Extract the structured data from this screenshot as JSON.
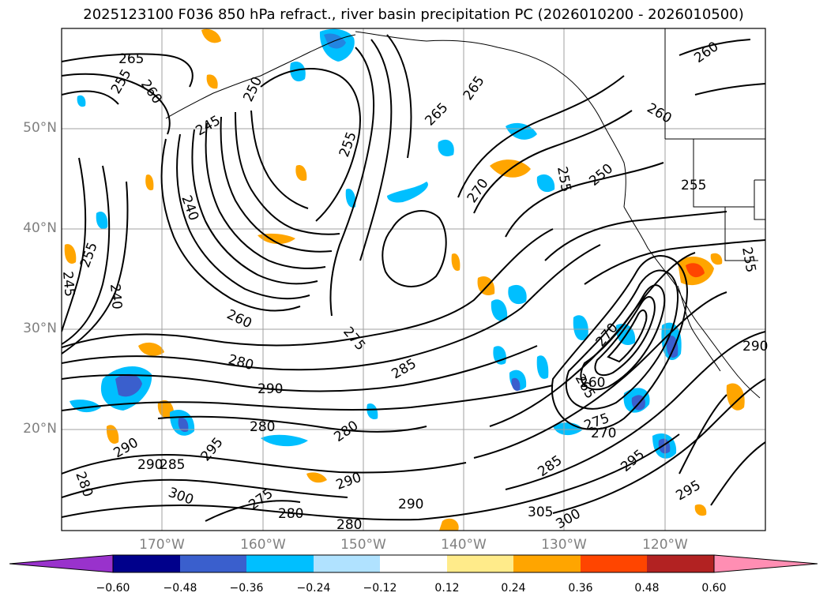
{
  "title": "2025123100 F036 850 hPa refract., river basin precipitation PC (2026010200 - 2026010500)",
  "lat_labels": [
    "50°N",
    "40°N",
    "30°N",
    "20°N"
  ],
  "lon_labels": [
    "170°W",
    "160°W",
    "150°W",
    "140°W",
    "130°W",
    "120°W"
  ],
  "contour_labels": [
    "265",
    "260",
    "255",
    "250",
    "245",
    "240",
    "255",
    "260",
    "265",
    "270",
    "265",
    "260",
    "255",
    "250",
    "255",
    "260",
    "245",
    "255",
    "240",
    "275",
    "280",
    "285",
    "290",
    "295",
    "300",
    "305",
    "280",
    "290",
    "285",
    "275",
    "270",
    "265",
    "260",
    "280",
    "290",
    "295",
    "300",
    "290",
    "280",
    "275",
    "270",
    "255",
    "290",
    "280",
    "285",
    "295",
    "290",
    "280"
  ],
  "colorbar": {
    "ticks": [
      "−0.60",
      "−0.48",
      "−0.36",
      "−0.24",
      "−0.12",
      "0.12",
      "0.24",
      "0.36",
      "0.48",
      "0.60"
    ],
    "colors": [
      "#9932cc",
      "#00008b",
      "#3a5fcd",
      "#00bfff",
      "#b0e2ff",
      "#ffffff",
      "#ffeb8a",
      "#ffa500",
      "#ff4500",
      "#b22222",
      "#ff8eb3"
    ]
  }
}
